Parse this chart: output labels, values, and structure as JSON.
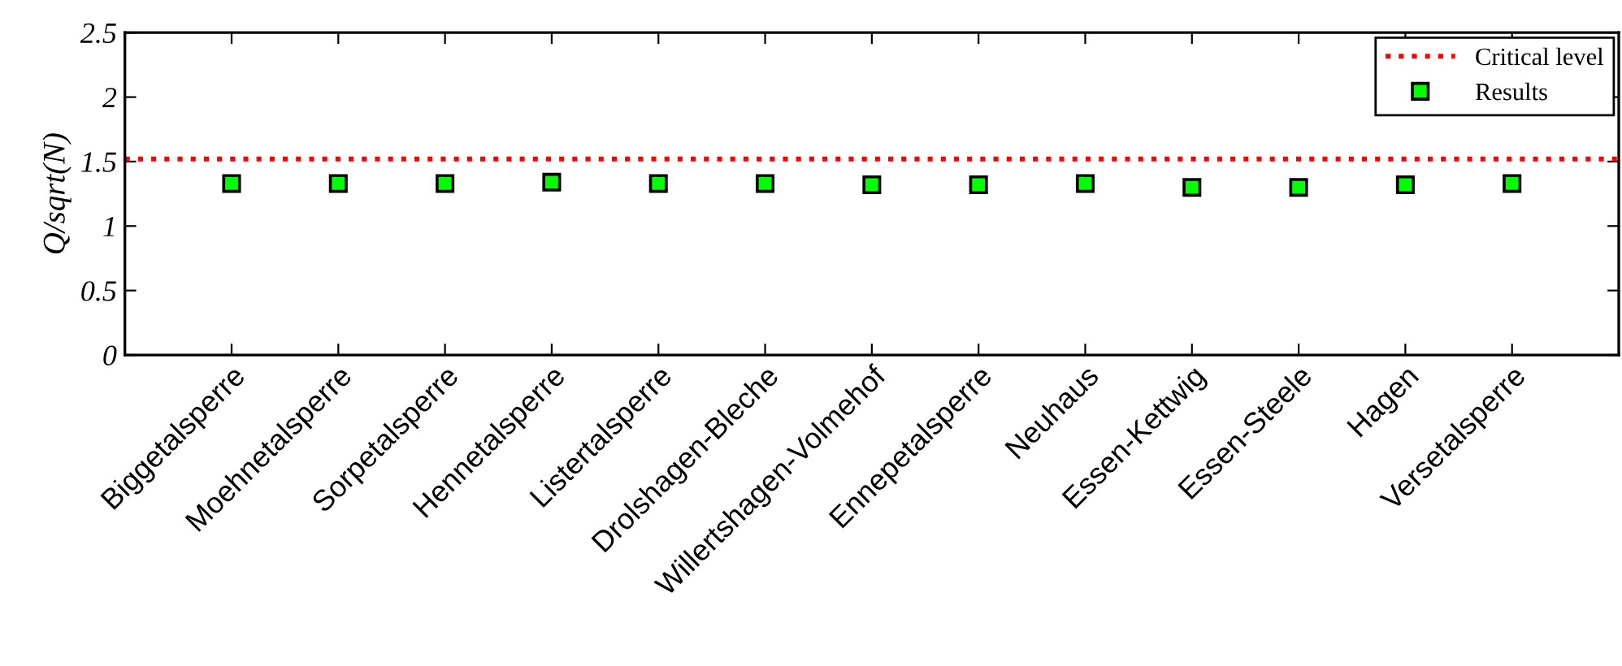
{
  "chart_data": {
    "type": "scatter",
    "ylabel": "Q/sqrt(N)",
    "categories": [
      "Biggetalsperre",
      "Moehnetalsperre",
      "Sorpetalsperre",
      "Hennetalsperre",
      "Listertalsperre",
      "Drolshagen-Bleche",
      "Willertshagen-Volmehof",
      "Ennepetalsperre",
      "Neuhaus",
      "Essen-Kettwig",
      "Essen-Steele",
      "Hagen",
      "Versetalsperre"
    ],
    "series": [
      {
        "name": "Results",
        "color": "#00ff00",
        "values": [
          1.33,
          1.33,
          1.33,
          1.34,
          1.33,
          1.33,
          1.32,
          1.32,
          1.33,
          1.3,
          1.3,
          1.32,
          1.33
        ]
      }
    ],
    "ref_lines": [
      {
        "axis": "y",
        "value": 1.52,
        "label": "Critical level",
        "color": "#ff0000",
        "line_style": "dotted"
      }
    ],
    "ylim": [
      0,
      2.5
    ],
    "yticks": [
      0,
      0.5,
      1,
      1.5,
      2,
      2.5
    ],
    "marker": "square",
    "legend": "top right",
    "grid": false
  }
}
